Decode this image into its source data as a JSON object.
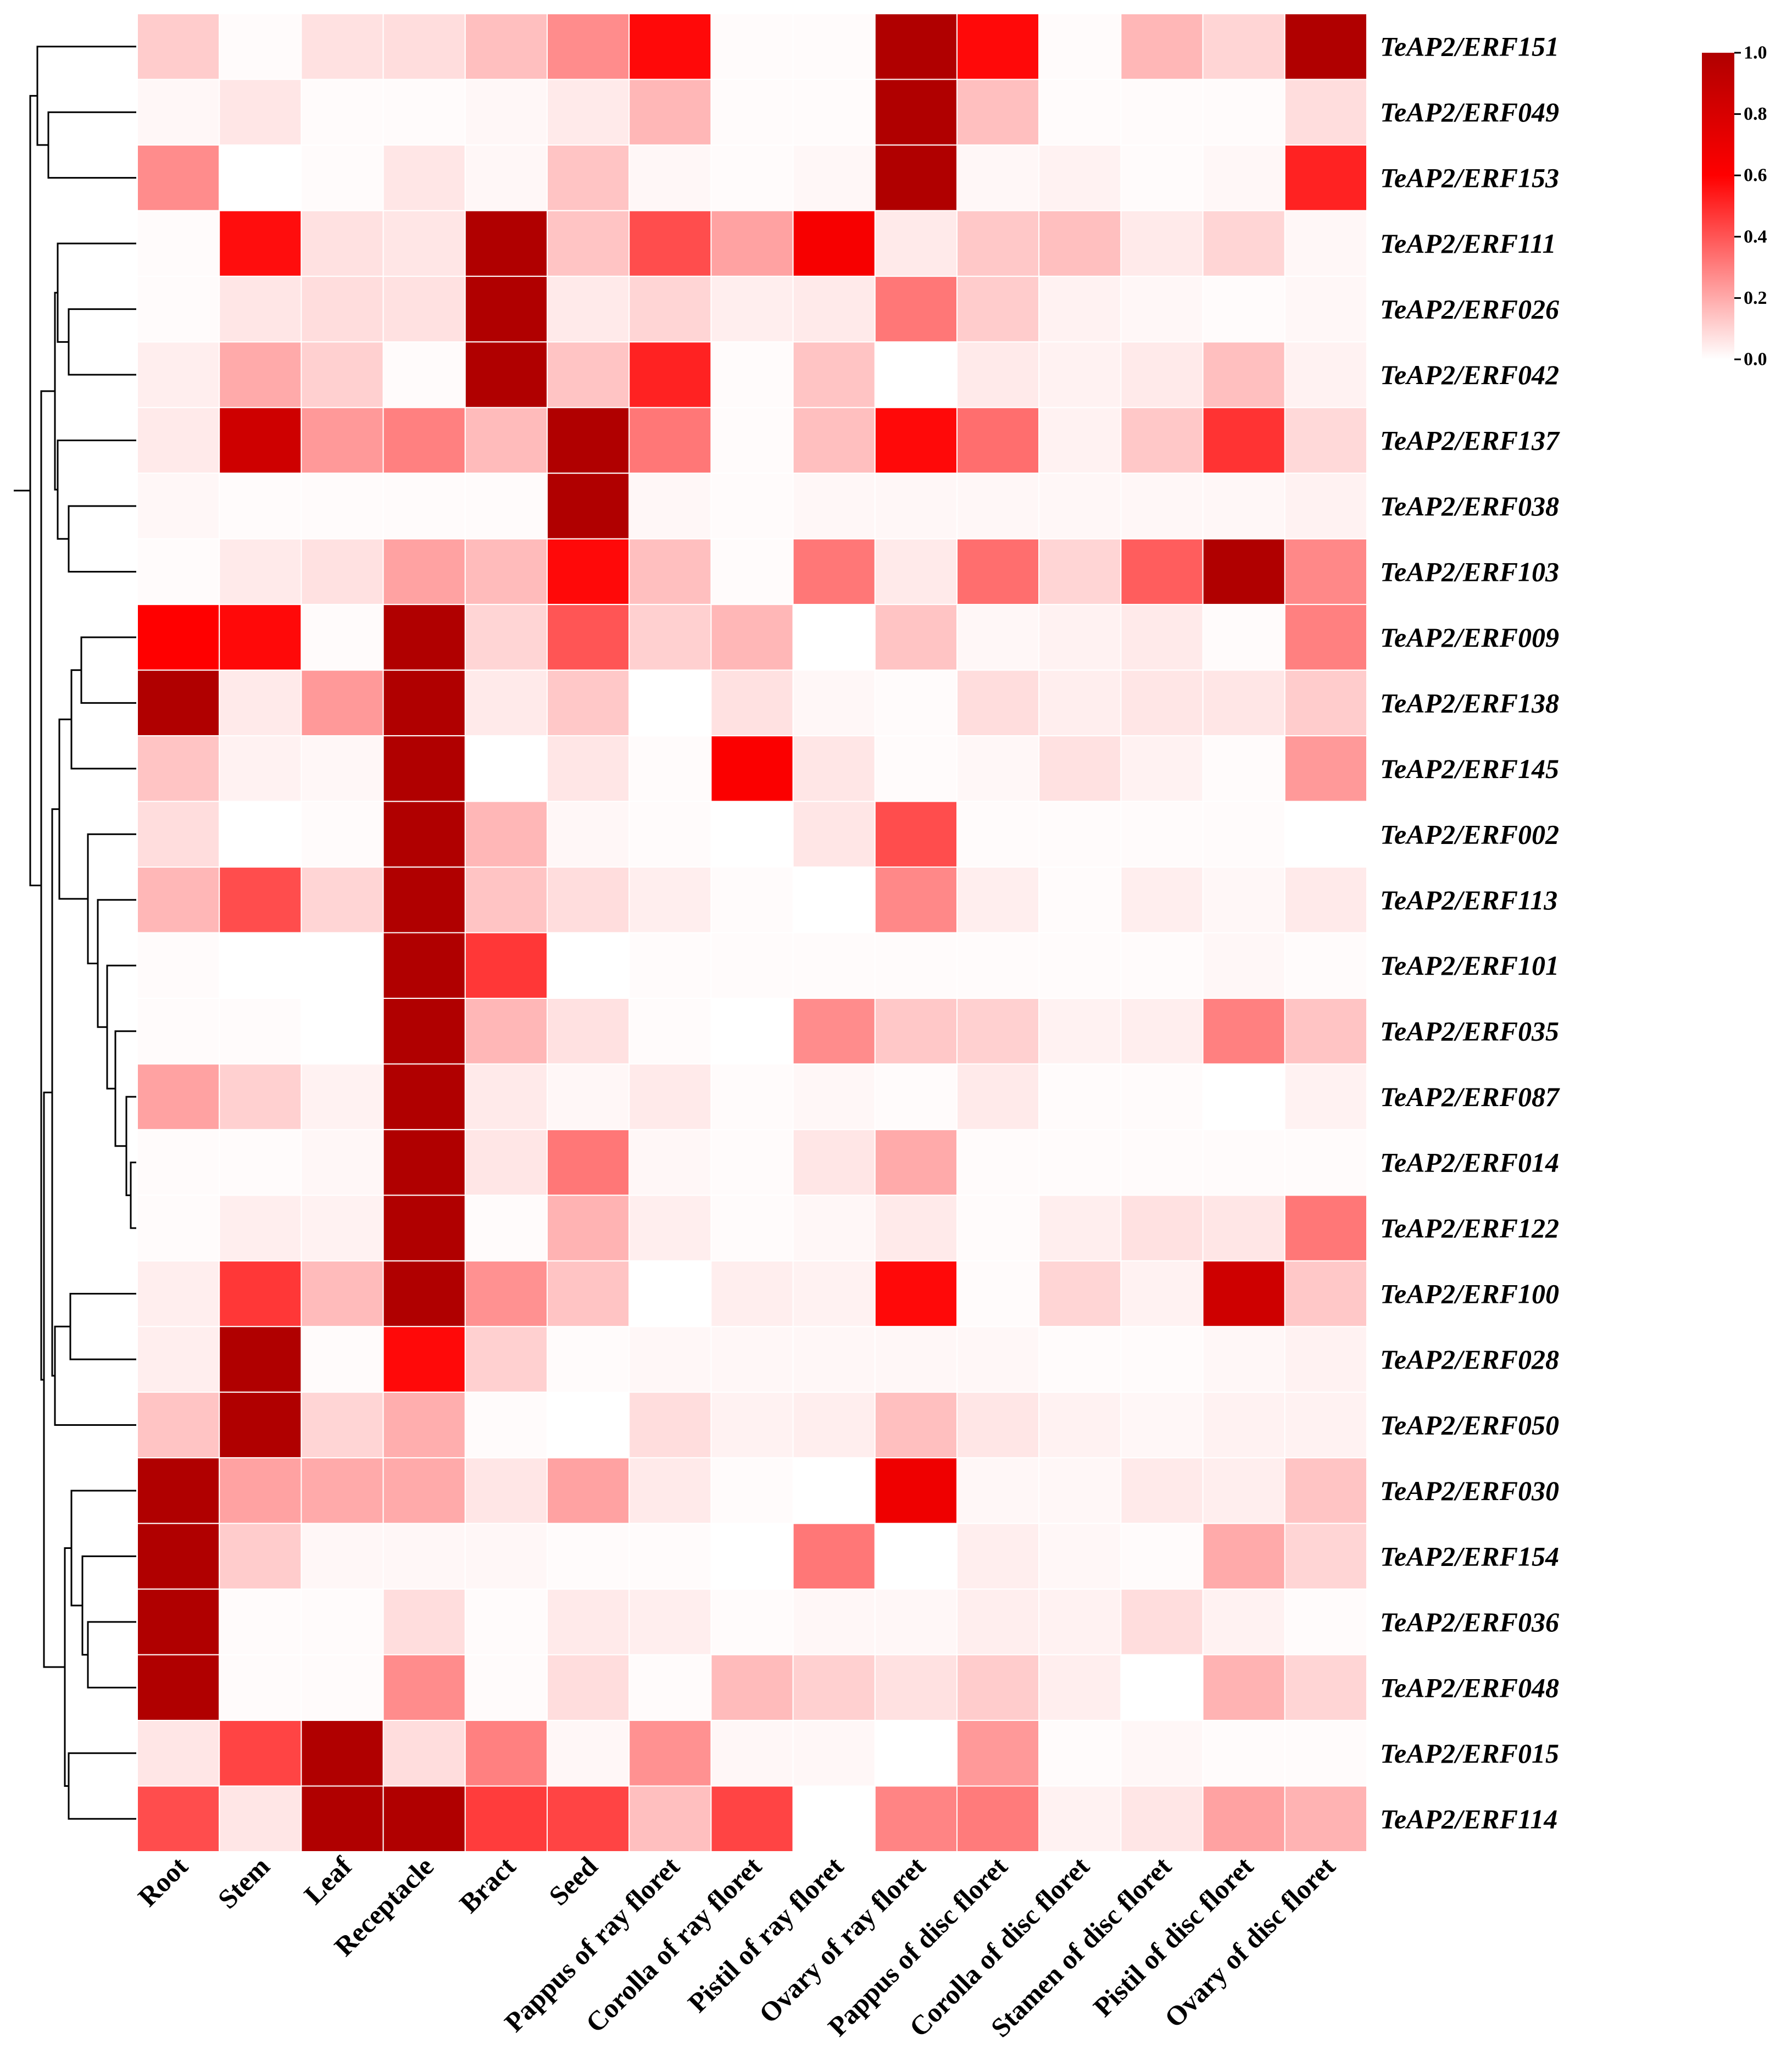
{
  "chart_data": {
    "type": "heatmap",
    "title": "",
    "xlabel": "",
    "ylabel": "",
    "color_scale": {
      "low": "#ffffff",
      "mid": "#ff0000",
      "high": "#b00000",
      "range": [
        0.0,
        1.0
      ]
    },
    "colorbar_ticks": [
      "0.0",
      "0.2",
      "0.4",
      "0.6",
      "0.8",
      "1.0"
    ],
    "grid": false,
    "dendrogram": "left",
    "columns": [
      "Root",
      "Stem",
      "Leaf",
      "Receptacle",
      "Bract",
      "Seed",
      "Pappus of ray floret",
      "Corolla of ray floret",
      "Pistil of ray floret",
      "Ovary of ray floret",
      "Pappus of disc floret",
      "Corolla of disc floret",
      "Stamen of disc floret",
      "Pistil of disc floret",
      "Ovary of disc floret"
    ],
    "rows": [
      "TeAP2/ERF151",
      "TeAP2/ERF049",
      "TeAP2/ERF153",
      "TeAP2/ERF111",
      "TeAP2/ERF026",
      "TeAP2/ERF042",
      "TeAP2/ERF137",
      "TeAP2/ERF038",
      "TeAP2/ERF103",
      "TeAP2/ERF009",
      "TeAP2/ERF138",
      "TeAP2/ERF145",
      "TeAP2/ERF002",
      "TeAP2/ERF113",
      "TeAP2/ERF101",
      "TeAP2/ERF035",
      "TeAP2/ERF087",
      "TeAP2/ERF014",
      "TeAP2/ERF122",
      "TeAP2/ERF100",
      "TeAP2/ERF028",
      "TeAP2/ERF050",
      "TeAP2/ERF030",
      "TeAP2/ERF154",
      "TeAP2/ERF036",
      "TeAP2/ERF048",
      "TeAP2/ERF015",
      "TeAP2/ERF114"
    ],
    "values": [
      [
        0.12,
        0.01,
        0.07,
        0.08,
        0.15,
        0.27,
        0.58,
        0.01,
        0.01,
        1.0,
        0.58,
        0.01,
        0.17,
        0.1,
        1.0
      ],
      [
        0.02,
        0.06,
        0.01,
        0.01,
        0.02,
        0.05,
        0.17,
        0.01,
        0.01,
        1.0,
        0.15,
        0.01,
        0.01,
        0.01,
        0.08
      ],
      [
        0.27,
        0.0,
        0.01,
        0.06,
        0.02,
        0.14,
        0.02,
        0.01,
        0.02,
        1.0,
        0.02,
        0.03,
        0.01,
        0.02,
        0.52
      ],
      [
        0.01,
        0.57,
        0.07,
        0.06,
        1.0,
        0.14,
        0.42,
        0.22,
        0.64,
        0.05,
        0.13,
        0.15,
        0.05,
        0.1,
        0.02
      ],
      [
        0.01,
        0.06,
        0.08,
        0.07,
        1.0,
        0.05,
        0.1,
        0.04,
        0.05,
        0.32,
        0.12,
        0.03,
        0.02,
        0.01,
        0.02
      ],
      [
        0.04,
        0.2,
        0.11,
        0.01,
        1.0,
        0.14,
        0.52,
        0.01,
        0.14,
        0.0,
        0.05,
        0.03,
        0.05,
        0.15,
        0.03
      ],
      [
        0.05,
        0.85,
        0.24,
        0.3,
        0.16,
        1.0,
        0.32,
        0.01,
        0.15,
        0.58,
        0.34,
        0.03,
        0.13,
        0.48,
        0.09
      ],
      [
        0.02,
        0.01,
        0.01,
        0.01,
        0.01,
        1.0,
        0.02,
        0.01,
        0.02,
        0.02,
        0.02,
        0.02,
        0.02,
        0.02,
        0.03
      ],
      [
        0.01,
        0.05,
        0.07,
        0.22,
        0.16,
        0.58,
        0.15,
        0.01,
        0.32,
        0.05,
        0.34,
        0.1,
        0.38,
        1.0,
        0.28
      ],
      [
        0.6,
        0.58,
        0.01,
        1.0,
        0.1,
        0.4,
        0.11,
        0.17,
        0.0,
        0.14,
        0.02,
        0.03,
        0.05,
        0.01,
        0.3
      ],
      [
        1.0,
        0.05,
        0.24,
        1.0,
        0.05,
        0.13,
        0.0,
        0.07,
        0.02,
        0.01,
        0.08,
        0.04,
        0.06,
        0.06,
        0.12
      ],
      [
        0.14,
        0.03,
        0.02,
        1.0,
        0.0,
        0.06,
        0.01,
        0.62,
        0.06,
        0.01,
        0.02,
        0.07,
        0.03,
        0.01,
        0.24
      ],
      [
        0.08,
        0.0,
        0.01,
        1.0,
        0.17,
        0.02,
        0.01,
        0.0,
        0.06,
        0.42,
        0.01,
        0.01,
        0.01,
        0.01,
        0.0
      ],
      [
        0.17,
        0.42,
        0.1,
        1.0,
        0.14,
        0.08,
        0.04,
        0.01,
        0.0,
        0.28,
        0.04,
        0.01,
        0.04,
        0.02,
        0.05
      ],
      [
        0.01,
        0.0,
        0.0,
        1.0,
        0.47,
        0.0,
        0.01,
        0.01,
        0.01,
        0.01,
        0.01,
        0.01,
        0.01,
        0.02,
        0.01
      ],
      [
        0.01,
        0.01,
        0.0,
        1.0,
        0.17,
        0.07,
        0.01,
        0.0,
        0.27,
        0.13,
        0.11,
        0.03,
        0.04,
        0.3,
        0.14
      ],
      [
        0.22,
        0.11,
        0.03,
        1.0,
        0.05,
        0.02,
        0.05,
        0.01,
        0.02,
        0.01,
        0.05,
        0.01,
        0.01,
        0.0,
        0.03
      ],
      [
        0.01,
        0.01,
        0.02,
        1.0,
        0.06,
        0.32,
        0.02,
        0.01,
        0.06,
        0.2,
        0.01,
        0.01,
        0.01,
        0.01,
        0.01
      ],
      [
        0.01,
        0.04,
        0.03,
        1.0,
        0.01,
        0.18,
        0.04,
        0.01,
        0.02,
        0.05,
        0.01,
        0.04,
        0.07,
        0.06,
        0.32
      ],
      [
        0.04,
        0.47,
        0.16,
        1.0,
        0.26,
        0.14,
        0.0,
        0.04,
        0.03,
        0.58,
        0.01,
        0.1,
        0.03,
        0.85,
        0.13
      ],
      [
        0.04,
        1.0,
        0.01,
        0.58,
        0.11,
        0.01,
        0.02,
        0.02,
        0.02,
        0.02,
        0.02,
        0.01,
        0.01,
        0.02,
        0.03
      ],
      [
        0.14,
        1.0,
        0.1,
        0.19,
        0.01,
        0.0,
        0.08,
        0.03,
        0.04,
        0.15,
        0.06,
        0.03,
        0.02,
        0.03,
        0.03
      ],
      [
        1.0,
        0.22,
        0.2,
        0.2,
        0.06,
        0.22,
        0.05,
        0.01,
        0.0,
        0.68,
        0.02,
        0.02,
        0.05,
        0.04,
        0.14
      ],
      [
        1.0,
        0.12,
        0.02,
        0.02,
        0.02,
        0.01,
        0.01,
        0.0,
        0.32,
        0.0,
        0.04,
        0.02,
        0.01,
        0.2,
        0.1
      ],
      [
        1.0,
        0.01,
        0.01,
        0.08,
        0.01,
        0.05,
        0.04,
        0.01,
        0.02,
        0.02,
        0.04,
        0.03,
        0.08,
        0.03,
        0.01
      ],
      [
        1.0,
        0.01,
        0.01,
        0.27,
        0.01,
        0.08,
        0.01,
        0.16,
        0.11,
        0.07,
        0.12,
        0.04,
        0.0,
        0.18,
        0.1
      ],
      [
        0.06,
        0.44,
        1.0,
        0.08,
        0.3,
        0.02,
        0.26,
        0.02,
        0.02,
        0.0,
        0.24,
        0.01,
        0.02,
        0.01,
        0.01
      ],
      [
        0.42,
        0.06,
        1.0,
        1.0,
        0.46,
        0.44,
        0.15,
        0.44,
        0.0,
        0.29,
        0.31,
        0.03,
        0.06,
        0.22,
        0.18
      ]
    ]
  }
}
